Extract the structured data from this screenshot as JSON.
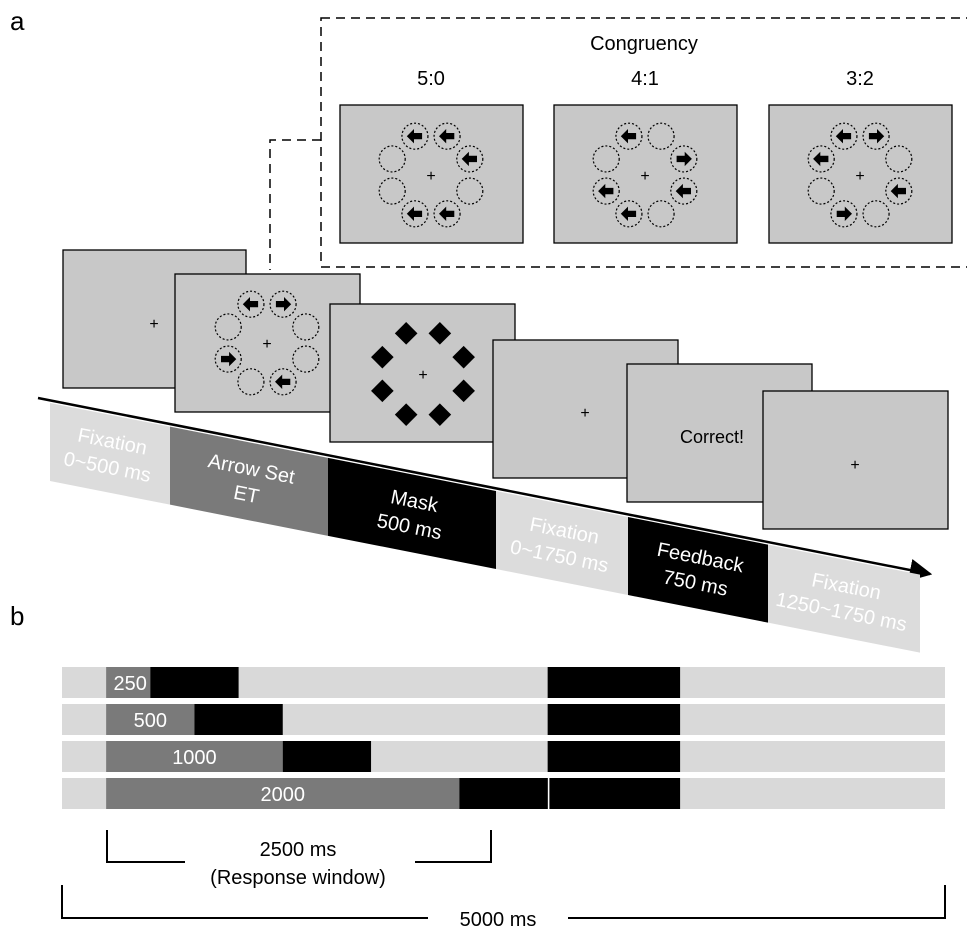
{
  "panels": {
    "a_label": "a",
    "b_label": "b"
  },
  "congruency": {
    "title": "Congruency",
    "conditions": [
      {
        "label": "5:0",
        "arrows": [
          "left",
          "left",
          "left",
          "left",
          "left"
        ]
      },
      {
        "label": "4:1",
        "arrows": [
          "left",
          "right",
          "left",
          "left",
          "left"
        ]
      },
      {
        "label": "3:2",
        "arrows": [
          "left",
          "right",
          "left",
          "right",
          "left"
        ]
      }
    ]
  },
  "screens": {
    "fixation_symbol": "+",
    "feedback_text": "Correct!"
  },
  "timeline": {
    "segments": [
      {
        "line1": "Fixation",
        "line2": "0~500 ms",
        "fill": "#dcdcdc",
        "text_color": "#ffffff"
      },
      {
        "line1": "Arrow Set",
        "line2": "ET",
        "fill": "#7a7a7a",
        "text_color": "#ffffff"
      },
      {
        "line1": "Mask",
        "line2": "500 ms",
        "fill": "#000000",
        "text_color": "#ffffff"
      },
      {
        "line1": "Fixation",
        "line2": "0~1750 ms",
        "fill": "#dcdcdc",
        "text_color": "#ffffff"
      },
      {
        "line1": "Feedback",
        "line2": "750 ms",
        "fill": "#000000",
        "text_color": "#ffffff"
      },
      {
        "line1": "Fixation",
        "line2": "1250~1750 ms",
        "fill": "#dcdcdc",
        "text_color": "#ffffff"
      }
    ]
  },
  "bars": {
    "rows": [
      {
        "duration_ms": 250,
        "label": "250"
      },
      {
        "duration_ms": 500,
        "label": "500"
      },
      {
        "duration_ms": 1000,
        "label": "1000"
      },
      {
        "duration_ms": 2000,
        "label": "2000"
      }
    ],
    "mask_ms": 500,
    "feedback_onset_ms": 2500,
    "feedback_ms": 750,
    "trial_ms": 5000,
    "response_window": {
      "line1": "2500 ms",
      "line2": "(Response window)"
    },
    "total_label": "5000 ms",
    "colors": {
      "background": "#d9d9d9",
      "arrow_set": "#7a7a7a",
      "mask": "#000000"
    }
  }
}
